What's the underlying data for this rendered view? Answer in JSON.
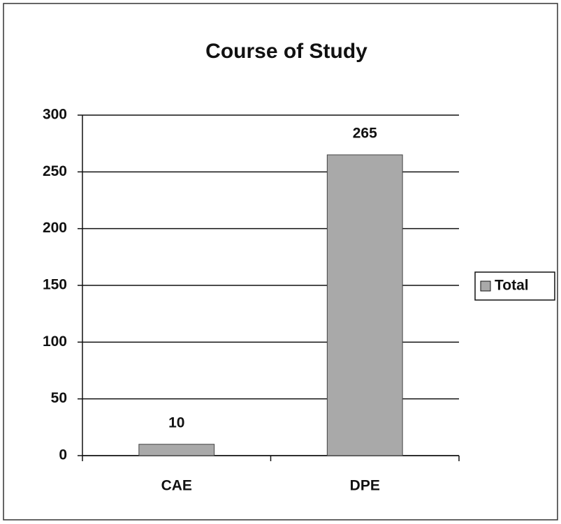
{
  "chart_data": {
    "type": "bar",
    "title": "Course of Study",
    "categories": [
      "CAE",
      "DPE"
    ],
    "series": [
      {
        "name": "Total",
        "color": "#a9a9a9",
        "values": [
          10,
          265
        ]
      }
    ],
    "ylim": [
      0,
      300
    ],
    "yticks": [
      0,
      50,
      100,
      150,
      200,
      250,
      300
    ],
    "grid": true,
    "legend": "right",
    "data_labels": true
  }
}
